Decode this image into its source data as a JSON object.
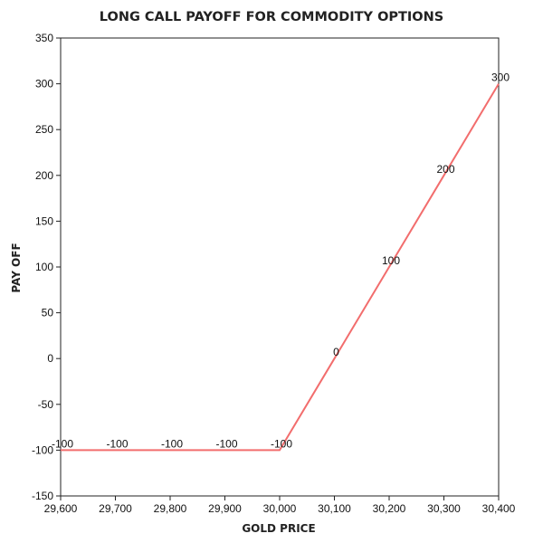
{
  "chart_data": {
    "type": "line",
    "title": "LONG CALL PAYOFF FOR COMMODITY OPTIONS",
    "xlabel": "GOLD PRICE",
    "ylabel": "PAY OFF",
    "x": [
      29600,
      29700,
      29800,
      29900,
      30000,
      30100,
      30200,
      30300,
      30400
    ],
    "x_tick_labels": [
      "29,600",
      "29,700",
      "29,800",
      "29,900",
      "30,000",
      "30,100",
      "30,200",
      "30,300",
      "30,400"
    ],
    "xlim": [
      29600,
      30400
    ],
    "ylim": [
      -150,
      350
    ],
    "y_ticks": [
      -150,
      -100,
      -50,
      0,
      50,
      100,
      150,
      200,
      250,
      300,
      350
    ],
    "series": [
      {
        "color": "#f26d6d",
        "points": [
          {
            "x": 29600,
            "y": -100,
            "label": "-100"
          },
          {
            "x": 29700,
            "y": -100,
            "label": "-100"
          },
          {
            "x": 29800,
            "y": -100,
            "label": "-100"
          },
          {
            "x": 29900,
            "y": -100,
            "label": "-100"
          },
          {
            "x": 30000,
            "y": -100,
            "label": "-100"
          },
          {
            "x": 30100,
            "y": 0,
            "label": "0"
          },
          {
            "x": 30200,
            "y": 100,
            "label": "100"
          },
          {
            "x": 30300,
            "y": 200,
            "label": "200"
          },
          {
            "x": 30400,
            "y": 300,
            "label": "300"
          }
        ]
      }
    ],
    "grid": false,
    "legend": "none"
  }
}
